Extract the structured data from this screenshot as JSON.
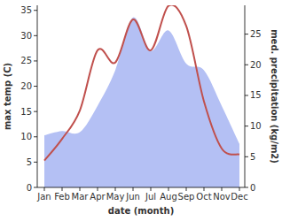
{
  "chart_data": {
    "type": "line",
    "x_label": "date (month)",
    "y_label": "max temp (C)",
    "y2_label": "med. precipitation (kg/m2)",
    "categories": [
      "Jan",
      "Feb",
      "Mar",
      "Apr",
      "May",
      "Jun",
      "Jul",
      "Aug",
      "Sep",
      "Oct",
      "Nov",
      "Dec"
    ],
    "ylim": [
      0,
      36
    ],
    "yticks": [
      0,
      5,
      10,
      15,
      20,
      25,
      30,
      35
    ],
    "y2lim": [
      0,
      29.7
    ],
    "y2ticks": [
      0,
      5,
      10,
      15,
      20,
      25
    ],
    "series": [
      {
        "name": "med. precipitation",
        "type": "area",
        "axis": "y2",
        "color": "#b4c0f4",
        "values": [
          8.5,
          9.2,
          9.0,
          13.3,
          19.1,
          27.7,
          22.3,
          25.6,
          20.2,
          19.1,
          13.3,
          7.1
        ]
      },
      {
        "name": "max temp",
        "type": "line",
        "color": "#c0504d",
        "values": [
          5.3,
          9.6,
          15.2,
          27.1,
          24.7,
          33.2,
          27.1,
          35.9,
          31.9,
          17.0,
          7.7,
          6.5
        ]
      }
    ]
  }
}
